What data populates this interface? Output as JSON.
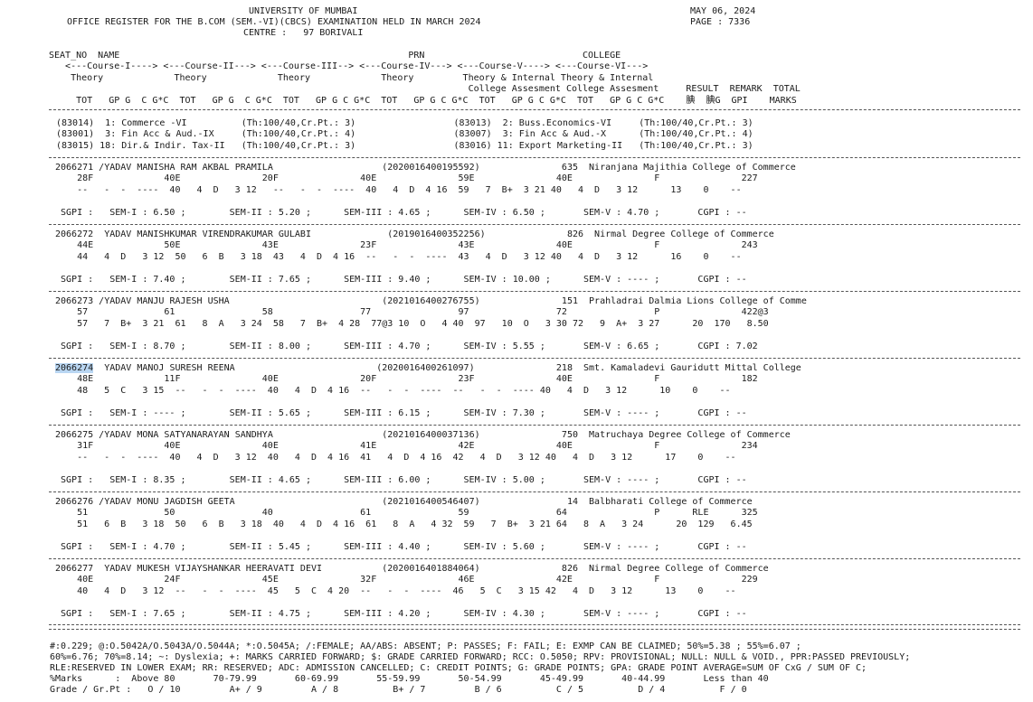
{
  "header": {
    "university": "UNIVERSITY OF MUMBAI",
    "register_title": "OFFICE REGISTER FOR THE B.COM (SEM.-VI)(CBCS) EXAMINATION HELD IN MARCH 2024",
    "centre": "CENTRE :   97 BORIVALI",
    "date": "MAY 06, 2024",
    "page": "PAGE : 7336"
  },
  "column_header": [
    "SEAT_NO  NAME                                                     PRN                             COLLEGE",
    "   <---Course-I----> <---Course-II---> <---Course-III--> <---Course-IV---> <---Course-V----> <---Course-VI--->",
    "    Theory             Theory             Theory             Theory         Theory & Internal Theory & Internal",
    "                                                                             College Assesment College Assesment     RESULT  REMARK  TOTAL",
    "     TOT   GP G  C G*C  TOT   GP G  C G*C  TOT   GP G C G*C  TOT   GP G C G*C  TOT   GP G C G*C  TOT   GP G C G*C    腆  腆G  GPI    MARKS"
  ],
  "courses": [
    "(83014)  1: Commerce -VI          (Th:100/40,Cr.Pt.: 3)                  (83013)  2: Buss.Economics-VI     (Th:100/40,Cr.Pt.: 3)",
    "(83001)  3: Fin Acc & Aud.-IX     (Th:100/40,Cr.Pt.: 4)                  (83007)  3: Fin Acc & Aud.-X      (Th:100/40,Cr.Pt.: 4)",
    "(83015) 18: Dir.& Indir. Tax-II   (Th:100/40,Cr.Pt.: 3)                  (83016) 11: Export Marketing-II   (Th:100/40,Cr.Pt.: 3)"
  ],
  "students": [
    {
      "seat": "2066271",
      "line1": " /YADAV MANISHA RAM AKBAL PRAMILA                    (2020016400195592)               635  Niranjana Majithia College of Commerce",
      "line2": "    28F             40E               20F               40E               59E               40E               F               227",
      "line3": "    --   -  -  ----  40   4  D   3 12   --   -  -  ----  40   4  D  4 16  59   7  B+  3 21 40   4  D   3 12      13    0    --",
      "sgpi": " SGPI :   SEM-I : 6.50 ;        SEM-II : 5.20 ;      SEM-III : 4.65 ;      SEM-IV : 6.50 ;       SEM-V : 4.70 ;       CGPI : --"
    },
    {
      "seat": "2066272",
      "line1": "  YADAV MANISHKUMAR VIRENDRAKUMAR GULABI              (2019016400352256)               826  Nirmal Degree College of Commerce",
      "line2": "    44E             50E               43E               23F               43E               40E               F               243",
      "line3": "    44   4  D   3 12  50   6  B   3 18  43   4  D  4 16  --   -  -  ----  43   4  D   3 12 40   4  D   3 12      16    0    --",
      "sgpi": " SGPI :   SEM-I : 7.40 ;        SEM-II : 7.65 ;      SEM-III : 9.40 ;      SEM-IV : 10.00 ;      SEM-V : ---- ;       CGPI : --"
    },
    {
      "seat": "2066273",
      "line1": " /YADAV MANJU RAJESH USHA                            (2021016400276755)               151  Prahladrai Dalmia Lions College of Comme",
      "line2": "    57              61                58                77                97                72                P               422@3",
      "line3": "    57   7  B+  3 21  61   8  A   3 24  58   7  B+  4 28  77@3 10  O   4 40  97   10  O   3 30 72   9  A+  3 27      20  170   8.50",
      "sgpi": " SGPI :   SEM-I : 8.70 ;        SEM-II : 8.00 ;      SEM-III : 4.70 ;      SEM-IV : 5.55 ;       SEM-V : 6.65 ;       CGPI : 7.02"
    },
    {
      "seat": "2066274",
      "line1": "  YADAV MANOJ SURESH REENA                          (2020016400261097)               218  Smt. Kamaladevi Gauridutt Mittal College",
      "line2": "    48E             11F               40E               20F               23F               40E               F               182",
      "line3": "    48   5  C   3 15  --   -  -  ----  40   4  D  4 16  --   -  -  ----  --   -  -  ---- 40   4  D   3 12      10    0    --",
      "sgpi": " SGPI :   SEM-I : ---- ;        SEM-II : 5.65 ;      SEM-III : 6.15 ;      SEM-IV : 7.30 ;       SEM-V : ---- ;       CGPI : --"
    },
    {
      "seat": "2066275",
      "line1": " /YADAV MONA SATYANARAYAN SANDHYA                    (2021016400037136)               750  Matruchaya Degree College of Commerce",
      "line2": "    31F             40E               40E               41E               42E               40E               F               234",
      "line3": "    --   -  -  ----  40   4  D   3 12  40   4  D  4 16  41   4  D  4 16  42   4  D   3 12 40   4  D   3 12      17    0    --",
      "sgpi": " SGPI :   SEM-I : 8.35 ;        SEM-II : 4.65 ;      SEM-III : 6.00 ;      SEM-IV : 5.00 ;       SEM-V : ---- ;       CGPI : --"
    },
    {
      "seat": "2066276",
      "line1": " /YADAV MONU JAGDISH GEETA                           (2021016400546407)                14  Balbharati College of Commerce",
      "line2": "    51              50                40                61                59                64                P      RLE      325",
      "line3": "    51   6  B   3 18  50   6  B   3 18  40   4  D  4 16  61   8  A   4 32  59   7  B+  3 21 64   8  A   3 24      20  129   6.45",
      "sgpi": " SGPI :   SEM-I : 4.70 ;        SEM-II : 5.45 ;      SEM-III : 4.40 ;      SEM-IV : 5.60 ;       SEM-V : ---- ;       CGPI : --"
    },
    {
      "seat": "2066277",
      "line1": "  YADAV MUKESH VIJAYSHANKAR HEERAVATI DEVI           (2020016401884064)               826  Nirmal Degree College of Commerce",
      "line2": "    40E             24F               45E               32F               46E               42E               F               229",
      "line3": "    40   4  D   3 12  --   -  -  ----  45   5  C  4 20  --   -  -  ----  46   5  C   3 15 42   4  D   3 12      13    0    --",
      "sgpi": " SGPI :   SEM-I : 7.65 ;        SEM-II : 4.75 ;      SEM-III : 4.20 ;      SEM-IV : 4.30 ;       SEM-V : ---- ;       CGPI : --"
    }
  ],
  "legend": [
    "#:0.229; @:O.5042A/O.5043A/O.5044A; *:O.5045A; /:FEMALE; AA/ABS: ABSENT; P: PASSES; F: FAIL; E: EXMP CAN BE CLAIMED; 50%=5.38 ; 55%=6.07 ;",
    "60%=6.76; 70%=8.14; ~: Dyslexia; +: MARKS CARRIED FORWARD; $: GRADE CARRIED FORWARD; RCC: O.5050; RPV: PROVISIONAL; NULL: NULL & VOID., PPR:PASSED PREVIOUSLY;",
    "RLE:RESERVED IN LOWER EXAM; RR: RESERVED; ADC: ADMISSION CANCELLED; C: CREDIT POINTS; G: GRADE POINTS; GPA: GRADE POINT AVERAGE=SUM OF CxG / SUM OF C;",
    "%Marks      :  Above 80       70-79.99       60-69.99       55-59.99       50-54.99       45-49.99       40-44.99       Less than 40",
    "Grade / Gr.Pt :   O / 10         A+ / 9         A / 8          B+ / 7         B / 6          C / 5          D / 4          F / 0"
  ]
}
